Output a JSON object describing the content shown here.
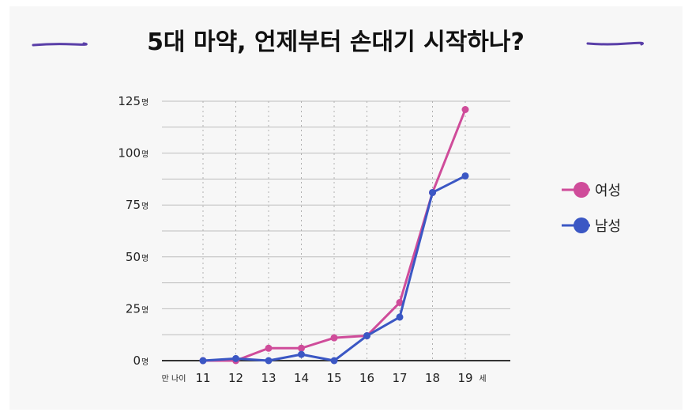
{
  "chart_data": {
    "type": "line",
    "title": "5대 마약, 언제부터 손대기 시작하나?",
    "x_prefix": "만 나이",
    "x_suffix": "세",
    "y_unit": "명",
    "categories": [
      "11",
      "12",
      "13",
      "14",
      "15",
      "16",
      "17",
      "18",
      "19"
    ],
    "y_ticks": [
      0,
      25,
      50,
      75,
      100,
      125
    ],
    "ylim": [
      0,
      125
    ],
    "grid": true,
    "legend_position": "right",
    "series": [
      {
        "name": "여성",
        "color": "#cf4c9a",
        "values": [
          0,
          0,
          6,
          6,
          11,
          12,
          28,
          81,
          121
        ]
      },
      {
        "name": "남성",
        "color": "#3b57c4",
        "values": [
          0,
          1,
          0,
          3,
          0,
          12,
          21,
          81,
          89
        ]
      }
    ]
  },
  "style": {
    "title_line_color": "#5a3fa8",
    "axis_color": "#333333",
    "grid_color": "#bdbdbd"
  }
}
